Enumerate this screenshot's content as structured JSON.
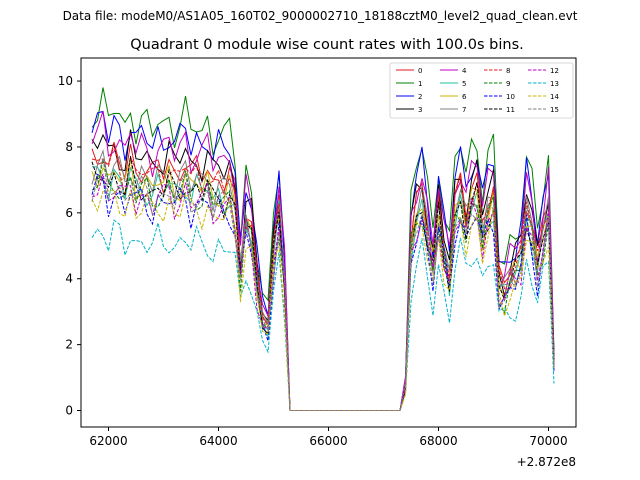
{
  "header": {
    "filename": "Data file: modeM0/AS1A05_160T02_9000002710_18188cztM0_level2_quad_clean.evt",
    "title": "Quadrant 0 module wise count rates with 100.0s bins."
  },
  "chart_data": {
    "type": "line",
    "title": "Quadrant 0 module wise count rates with 100.0s bins.",
    "xlabel": "",
    "ylabel": "",
    "x_offset_label": "+2.872e8",
    "xlim": [
      61500,
      70500
    ],
    "ylim": [
      -0.5,
      10.7
    ],
    "xticks": [
      62000,
      64000,
      66000,
      68000,
      70000
    ],
    "xtick_labels": [
      "62000",
      "64000",
      "66000",
      "68000",
      "70000"
    ],
    "yticks": [
      0,
      2,
      4,
      6,
      8,
      10
    ],
    "ytick_labels": [
      "0",
      "2",
      "4",
      "6",
      "8",
      "10"
    ],
    "legend_position": "top-right",
    "x": [
      61700,
      61800,
      61900,
      62000,
      62100,
      62200,
      62300,
      62400,
      62500,
      62600,
      62700,
      62800,
      62900,
      63000,
      63100,
      63200,
      63300,
      63400,
      63500,
      63600,
      63700,
      63800,
      63900,
      64000,
      64100,
      64200,
      64300,
      64400,
      64500,
      64600,
      64700,
      64800,
      64900,
      65000,
      65100,
      65200,
      65300,
      65400,
      65500,
      65600,
      65700,
      65800,
      65900,
      66000,
      66100,
      66200,
      66300,
      66400,
      66500,
      66600,
      66700,
      66800,
      66900,
      67000,
      67100,
      67200,
      67300,
      67400,
      67500,
      67600,
      67700,
      67800,
      67900,
      68000,
      68100,
      68200,
      68300,
      68400,
      68500,
      68600,
      68700,
      68800,
      68900,
      69000,
      69100,
      69200,
      69300,
      69400,
      69500,
      69600,
      69700,
      69800,
      69900,
      70000,
      70100
    ],
    "series_base": [
      {
        "name": "0",
        "color": "#e41a1c",
        "dash": "solid",
        "scale": 0.98,
        "phase": 0
      },
      {
        "name": "1",
        "color": "#008000",
        "dash": "solid",
        "scale": 1.16,
        "phase": 1
      },
      {
        "name": "2",
        "color": "#0000ff",
        "dash": "solid",
        "scale": 1.1,
        "phase": 2
      },
      {
        "name": "3",
        "color": "#000000",
        "dash": "solid",
        "scale": 1.02,
        "phase": 3
      },
      {
        "name": "4",
        "color": "#c000c0",
        "dash": "solid",
        "scale": 1.06,
        "phase": 4
      },
      {
        "name": "5",
        "color": "#20c0a0",
        "dash": "solid",
        "scale": 0.9,
        "phase": 5
      },
      {
        "name": "6",
        "color": "#c8b400",
        "dash": "solid",
        "scale": 0.92,
        "phase": 6
      },
      {
        "name": "7",
        "color": "#808080",
        "dash": "solid",
        "scale": 0.94,
        "phase": 7
      },
      {
        "name": "8",
        "color": "#e41a1c",
        "dash": "dashed",
        "scale": 0.96,
        "phase": 8
      },
      {
        "name": "9",
        "color": "#008000",
        "dash": "dashed",
        "scale": 0.88,
        "phase": 9
      },
      {
        "name": "10",
        "color": "#0000ff",
        "dash": "dashed",
        "scale": 0.84,
        "phase": 10
      },
      {
        "name": "11",
        "color": "#000000",
        "dash": "dashed",
        "scale": 0.9,
        "phase": 11
      },
      {
        "name": "12",
        "color": "#c000c0",
        "dash": "dashed",
        "scale": 0.86,
        "phase": 12
      },
      {
        "name": "13",
        "color": "#00b4c8",
        "dash": "dashed",
        "scale": 0.68,
        "phase": 13
      },
      {
        "name": "14",
        "color": "#c8b400",
        "dash": "dashed",
        "scale": 0.82,
        "phase": 14
      },
      {
        "name": "15",
        "color": "#808080",
        "dash": "dashed",
        "scale": 0.87,
        "phase": 15
      }
    ],
    "profile": [
      7.8,
      7.9,
      8.2,
      7.5,
      7.9,
      7.7,
      7.3,
      8.0,
      7.4,
      7.6,
      7.5,
      7.2,
      7.6,
      7.4,
      7.7,
      7.3,
      7.5,
      7.8,
      7.2,
      7.5,
      7.3,
      7.6,
      7.0,
      7.3,
      7.1,
      7.3,
      6.6,
      4.6,
      6.3,
      5.8,
      4.2,
      3.0,
      2.7,
      5.2,
      6.5,
      4.2,
      0.0,
      0.0,
      0.0,
      0.0,
      0.0,
      0.0,
      0.0,
      0.0,
      0.0,
      0.0,
      0.0,
      0.0,
      0.0,
      0.0,
      0.0,
      0.0,
      0.0,
      0.0,
      0.0,
      0.0,
      0.0,
      0.8,
      5.5,
      6.4,
      6.9,
      5.8,
      4.7,
      6.5,
      5.2,
      4.4,
      6.5,
      7.0,
      6.1,
      6.9,
      7.1,
      5.8,
      6.6,
      6.9,
      4.0,
      3.9,
      4.4,
      4.6,
      5.0,
      6.6,
      5.9,
      4.7,
      5.7,
      6.6,
      1.5
    ]
  }
}
